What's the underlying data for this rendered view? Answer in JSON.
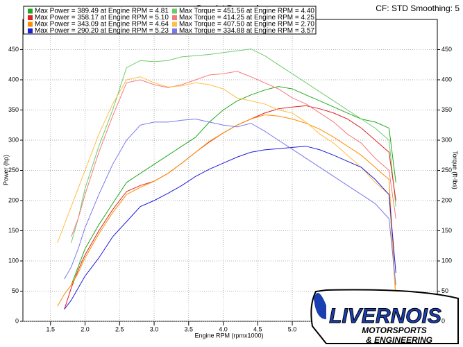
{
  "chart_data": {
    "type": "line",
    "title": "Dynojet Research",
    "annotation": "CF: STD Smoothing: 5",
    "xlabel": "Engine RPM (rpmx1000)",
    "ylabel": "Power (hp)",
    "y2label": "Torque (ft-lbs)",
    "xlim": [
      1.1,
      7.1
    ],
    "ylim": [
      0,
      500
    ],
    "y2lim": [
      0,
      500
    ],
    "grid": true,
    "xticks": [
      1.5,
      {
        "value": 2,
        "label": "2.0"
      },
      2.5,
      {
        "value": 3,
        "label": "3.0"
      },
      3.5,
      {
        "value": 4,
        "label": "4.0"
      },
      4.5,
      {
        "value": 5,
        "label": "5.0"
      }
    ],
    "yticks": [
      0,
      50,
      100,
      150,
      200,
      250,
      300,
      350,
      400,
      450
    ],
    "y2ticks": [
      0,
      50,
      100,
      150,
      200,
      250,
      300,
      350,
      400,
      450
    ],
    "x": [
      1.6,
      1.7,
      1.8,
      1.9,
      2.0,
      2.2,
      2.4,
      2.6,
      2.8,
      3.0,
      3.2,
      3.4,
      3.6,
      3.8,
      4.0,
      4.2,
      4.4,
      4.6,
      4.8,
      5.0,
      5.2,
      5.4,
      5.6,
      5.8,
      6.0,
      6.2,
      6.4,
      6.5
    ],
    "series": [
      {
        "name": "Max Power = 389.49 at Engine RPM = 4.81",
        "color": "#1fa81f",
        "values": [
          null,
          null,
          60,
          90,
          120,
          160,
          195,
          230,
          245,
          260,
          275,
          290,
          305,
          330,
          350,
          365,
          375,
          383,
          389,
          385,
          375,
          365,
          355,
          345,
          335,
          330,
          320,
          230
        ]
      },
      {
        "name": "Max Torque = 451.56 at Engine RPM = 4.40",
        "color": "#6ccc6c",
        "axis": "y2",
        "values": [
          null,
          null,
          130,
          170,
          220,
          290,
          350,
          420,
          432,
          430,
          432,
          438,
          440,
          442,
          445,
          448,
          451,
          440,
          425,
          410,
          395,
          380,
          365,
          350,
          335,
          320,
          300,
          190
        ]
      },
      {
        "name": "Max Power = 358.17 at Engine RPM = 5.10",
        "color": "#e02020",
        "values": [
          null,
          20,
          55,
          85,
          110,
          150,
          185,
          215,
          225,
          232,
          245,
          262,
          280,
          297,
          312,
          325,
          335,
          345,
          352,
          355,
          357,
          352,
          345,
          335,
          320,
          300,
          280,
          200
        ]
      },
      {
        "name": "Max Torque = 414.25 at Engine RPM = 4.25",
        "color": "#f77a7a",
        "axis": "y2",
        "values": [
          null,
          null,
          140,
          170,
          210,
          280,
          340,
          395,
          400,
          392,
          387,
          392,
          400,
          408,
          410,
          414,
          405,
          395,
          385,
          370,
          360,
          345,
          330,
          310,
          295,
          270,
          250,
          170
        ]
      },
      {
        "name": "Max Power = 343.09 at Engine RPM = 4.64",
        "color": "#ff8c00",
        "values": [
          25,
          45,
          60,
          80,
          105,
          145,
          180,
          210,
          222,
          232,
          245,
          262,
          280,
          298,
          312,
          325,
          335,
          342,
          340,
          335,
          328,
          318,
          305,
          290,
          275,
          255,
          235,
          40
        ]
      },
      {
        "name": "Max Torque = 407.50 at Engine RPM = 2.70",
        "color": "#ffbf45",
        "axis": "y2",
        "values": [
          130,
          160,
          190,
          220,
          250,
          310,
          360,
          400,
          405,
          395,
          388,
          390,
          395,
          392,
          385,
          370,
          365,
          360,
          350,
          345,
          330,
          310,
          295,
          275,
          255,
          230,
          210,
          30
        ]
      },
      {
        "name": "Max Power = 290.20 at Engine RPM = 5.23",
        "color": "#1c1cdc",
        "values": [
          null,
          20,
          35,
          55,
          75,
          105,
          140,
          165,
          190,
          200,
          212,
          225,
          240,
          252,
          262,
          272,
          280,
          284,
          286,
          288,
          290,
          284,
          275,
          265,
          255,
          235,
          210,
          80
        ]
      },
      {
        "name": "Max Torque = 334.88 at Engine RPM = 3.57",
        "color": "#7878ee",
        "axis": "y2",
        "values": [
          null,
          70,
          90,
          120,
          155,
          210,
          260,
          300,
          325,
          330,
          330,
          333,
          335,
          330,
          325,
          322,
          328,
          315,
          300,
          285,
          270,
          255,
          240,
          225,
          210,
          195,
          170,
          60
        ]
      }
    ]
  },
  "logo": {
    "name": "LIVERNOIS",
    "line1": "MOTORSPORTS",
    "line2": "& ENGINEERING"
  }
}
